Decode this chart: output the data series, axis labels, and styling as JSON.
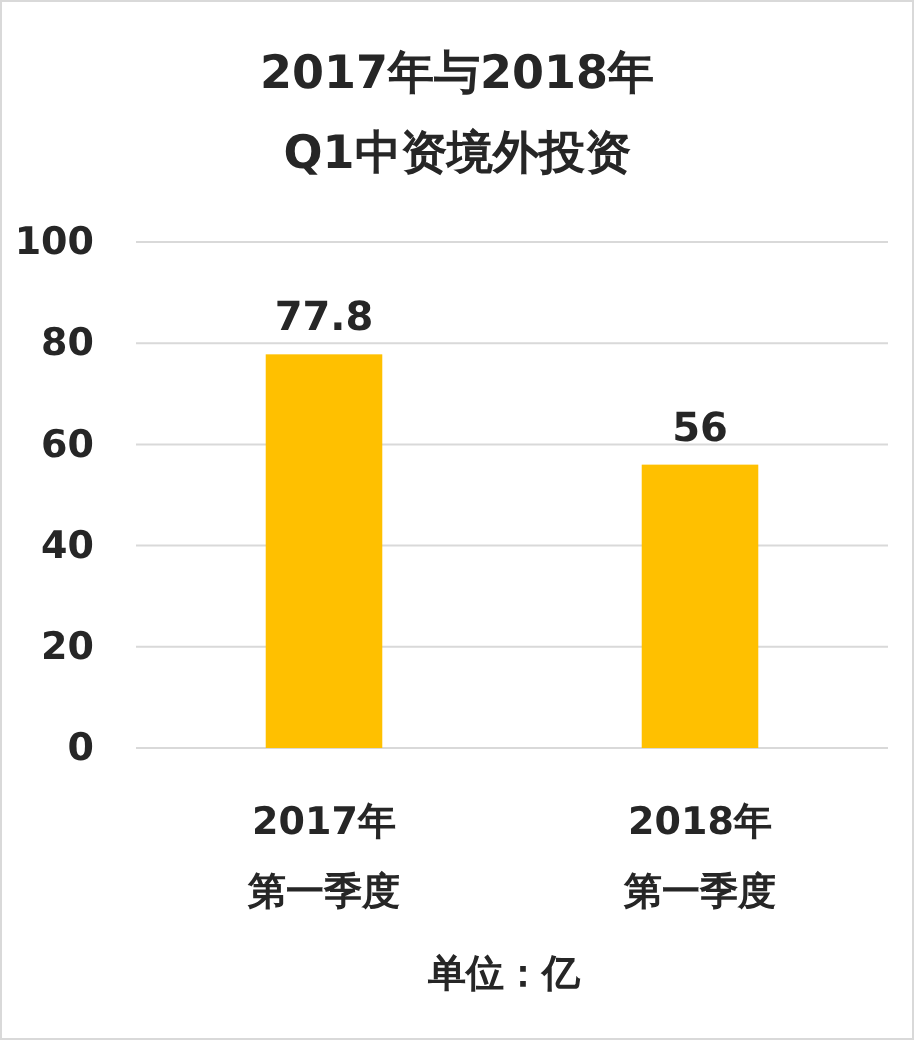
{
  "chart_data": {
    "type": "bar",
    "title": "2017年与2018年\nQ1中资境外投资",
    "categories": [
      "2017年第一季度",
      "2018年第一季度"
    ],
    "values": [
      77.8,
      56
    ],
    "color": "#ffc000",
    "data_labels": true,
    "ylim": [
      0,
      100
    ],
    "yticks": [
      0,
      20,
      40,
      60,
      80,
      100
    ],
    "grid": "y",
    "xlabel": "单位：亿"
  }
}
